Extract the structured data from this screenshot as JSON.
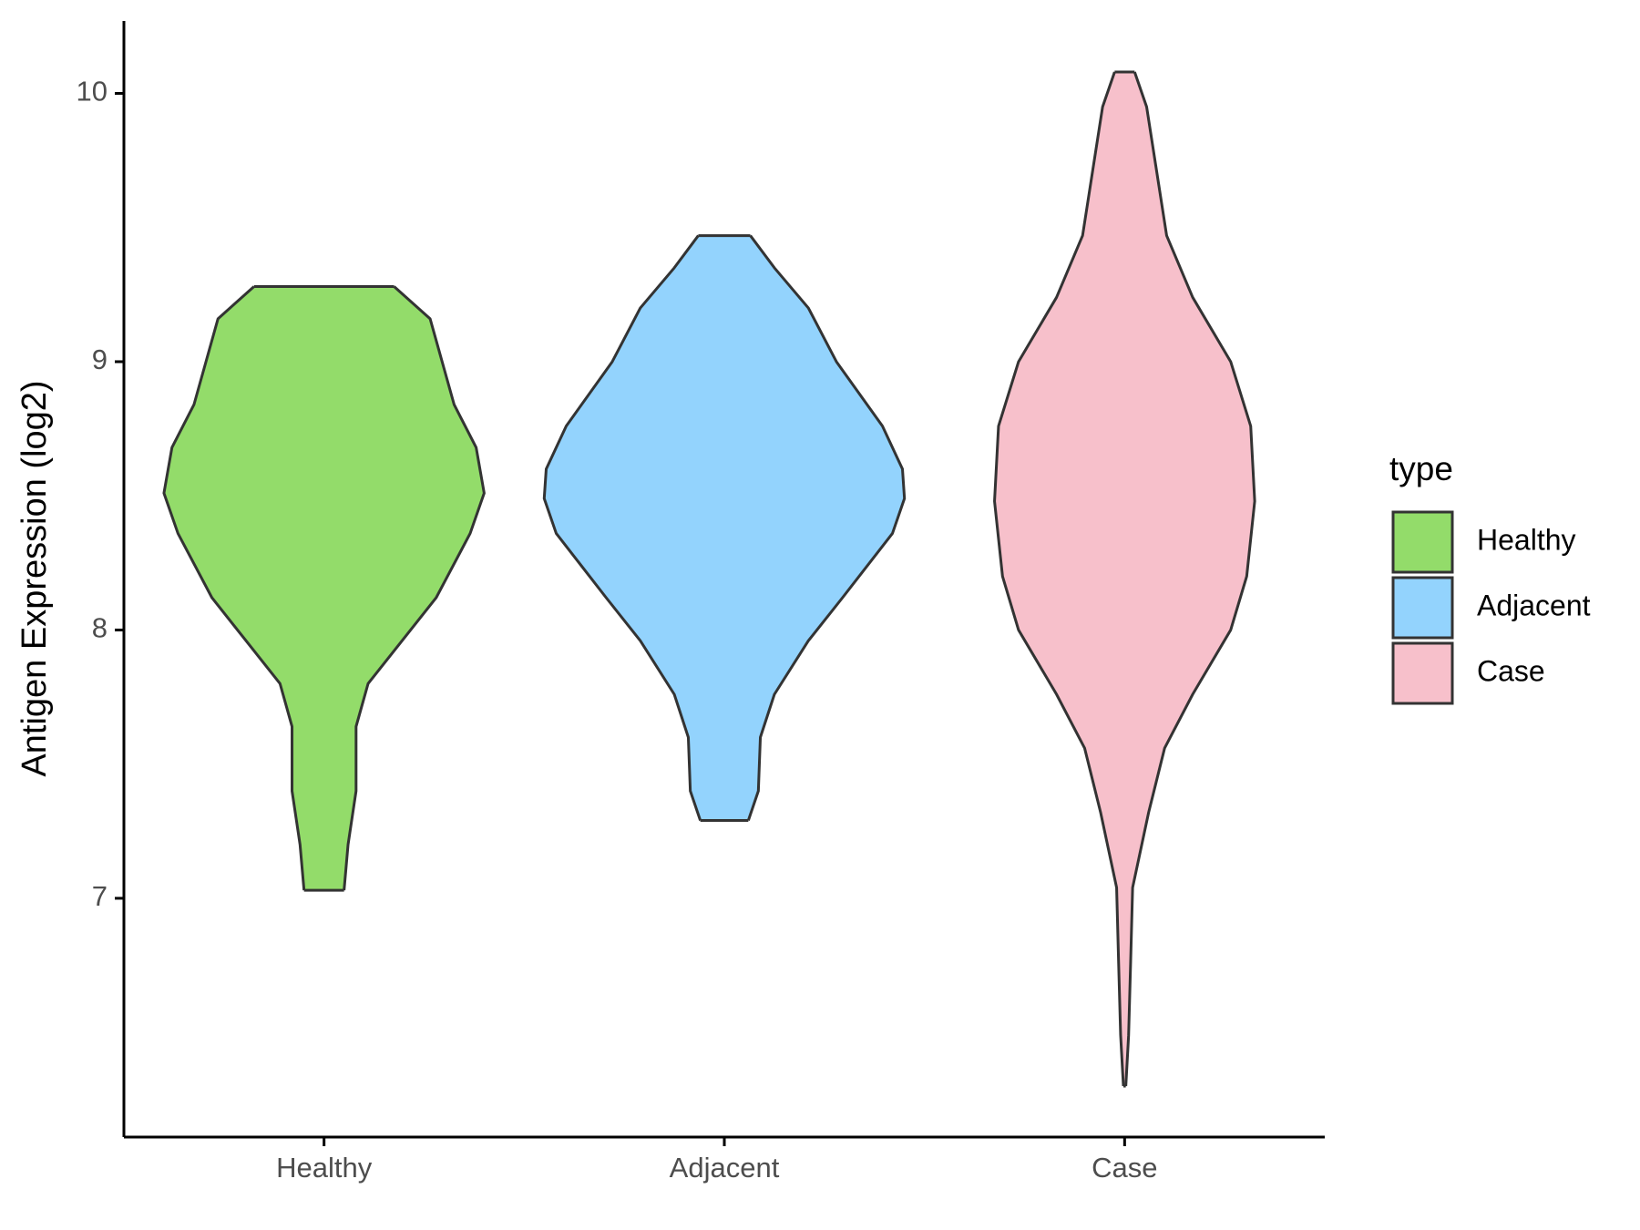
{
  "chart_data": {
    "type": "violin",
    "y_label": "Antigen Expression (log2)",
    "categories": [
      "Healthy",
      "Adjacent",
      "Case"
    ],
    "ylim": [
      6.11,
      10.27
    ],
    "yticks": [
      7,
      8,
      9,
      10
    ],
    "legend_title": "type",
    "legend_position": "right",
    "series": [
      {
        "name": "Healthy",
        "color": "#93dc6a",
        "y": [
          9.28,
          9.16,
          9.0,
          8.84,
          8.68,
          8.51,
          8.36,
          8.12,
          7.96,
          7.8,
          7.64,
          7.4,
          7.2,
          7.03
        ],
        "density": [
          0.35,
          0.53,
          0.59,
          0.65,
          0.76,
          0.8,
          0.73,
          0.56,
          0.39,
          0.22,
          0.16,
          0.16,
          0.12,
          0.1
        ]
      },
      {
        "name": "Adjacent",
        "color": "#93d3fd",
        "y": [
          9.47,
          9.35,
          9.2,
          9.0,
          8.76,
          8.6,
          8.49,
          8.36,
          8.12,
          7.96,
          7.76,
          7.6,
          7.4,
          7.29
        ],
        "density": [
          0.13,
          0.25,
          0.42,
          0.56,
          0.79,
          0.89,
          0.9,
          0.84,
          0.59,
          0.42,
          0.25,
          0.18,
          0.17,
          0.12
        ]
      },
      {
        "name": "Case",
        "color": "#f7c0cb",
        "y": [
          10.08,
          9.95,
          9.71,
          9.47,
          9.24,
          9.0,
          8.76,
          8.48,
          8.2,
          8.0,
          7.76,
          7.56,
          7.32,
          7.04,
          6.76,
          6.49,
          6.3
        ],
        "density": [
          0.05,
          0.11,
          0.16,
          0.21,
          0.34,
          0.53,
          0.63,
          0.65,
          0.61,
          0.53,
          0.34,
          0.2,
          0.12,
          0.04,
          0.03,
          0.02,
          0.006
        ]
      }
    ]
  }
}
